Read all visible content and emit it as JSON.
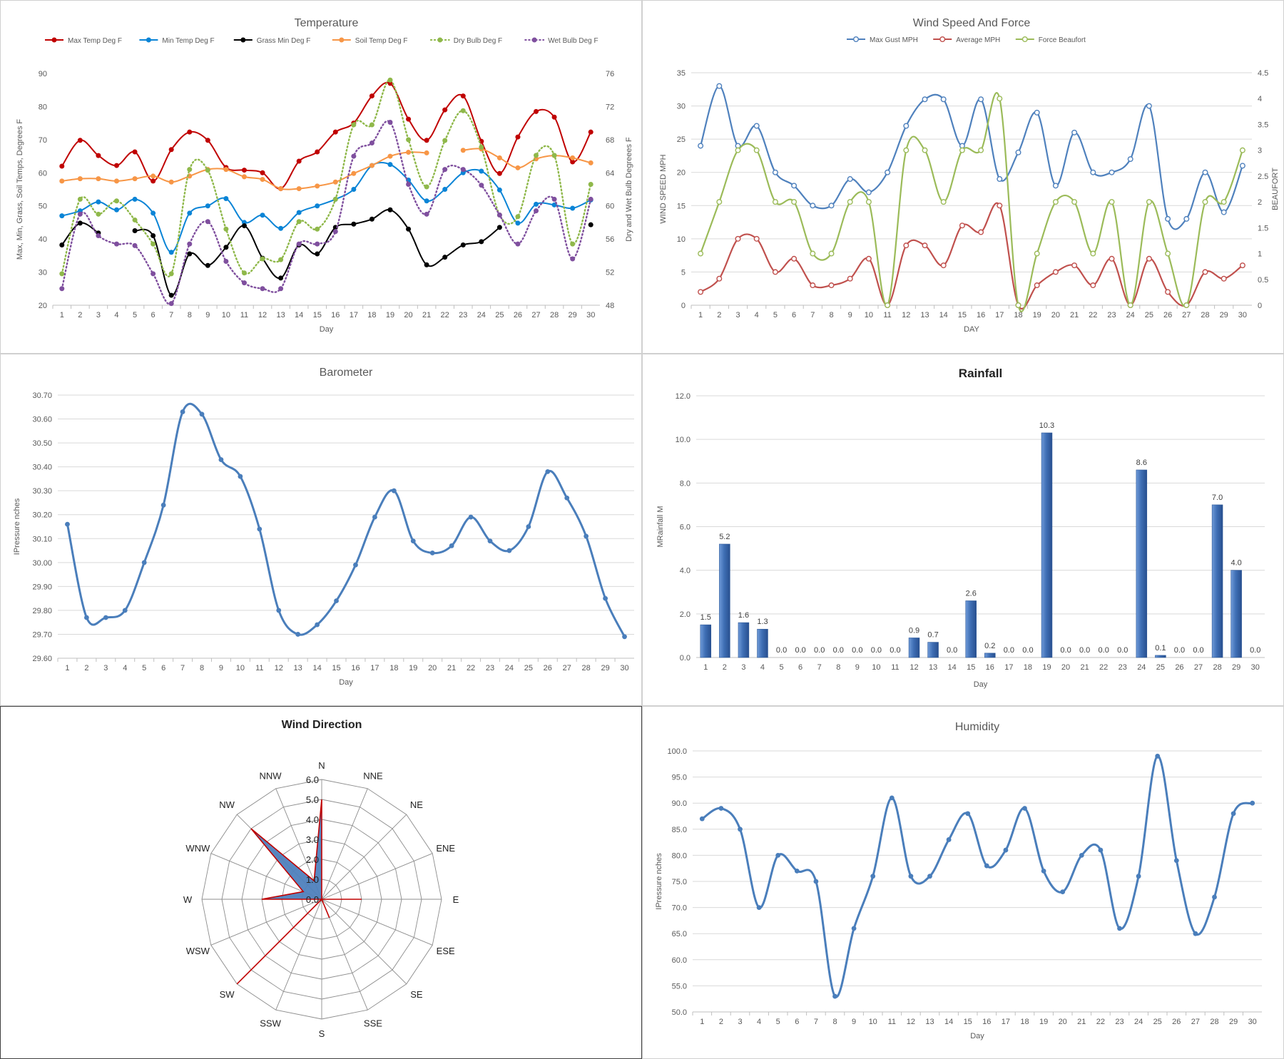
{
  "charts": {
    "temperature": {
      "chart_data": {
        "type": "line",
        "title": "Temperature",
        "xlabel": "Day",
        "ylabel": "Max, Min, Grass, Soil Temps, Degrees F",
        "y2label": "Dry and Wet Bulb Degreees F",
        "x": [
          1,
          2,
          3,
          4,
          5,
          6,
          7,
          8,
          9,
          10,
          11,
          12,
          13,
          14,
          15,
          16,
          17,
          18,
          19,
          20,
          21,
          22,
          23,
          24,
          25,
          26,
          27,
          28,
          29,
          30
        ],
        "ylim": [
          20,
          90
        ],
        "yticks": [
          20,
          30,
          40,
          50,
          60,
          70,
          80,
          90
        ],
        "y2lim": [
          48,
          76
        ],
        "y2ticks": [
          48,
          52,
          56,
          60,
          64,
          68,
          72,
          76
        ],
        "legend_position": "top",
        "series": [
          {
            "name": "Max Temp Deg F",
            "axis": "left",
            "color": "#c00000",
            "dashed": false,
            "values": [
              62,
              69.8,
              65.2,
              62.2,
              66.3,
              57.5,
              67,
              72.3,
              69.8,
              61.6,
              60.8,
              60,
              55.2,
              63.5,
              66.3,
              72.3,
              75,
              83.2,
              87,
              76.2,
              69.8,
              79,
              83.2,
              69.5,
              59.8,
              70.8,
              78.5,
              76.8,
              63.3,
              72.3
            ]
          },
          {
            "name": "Min Temp Deg F",
            "axis": "left",
            "color": "#0a84d6",
            "dashed": false,
            "values": [
              47,
              48.5,
              51.2,
              48.8,
              52,
              47.8,
              36,
              47.8,
              50,
              52.2,
              45,
              47.2,
              43.2,
              48,
              50,
              52,
              55,
              62.2,
              62.5,
              57.8,
              51.5,
              55,
              60,
              60.5,
              54.8,
              44.8,
              50.5,
              50.3,
              49.3,
              51.8
            ]
          },
          {
            "name": "Grass Min Deg F",
            "axis": "left",
            "color": "#000000",
            "dashed": false,
            "values": [
              38.2,
              44.8,
              41.8,
              null,
              42.5,
              41,
              23,
              35.5,
              32,
              37.5,
              44,
              34.2,
              28.2,
              38.2,
              35.5,
              43.5,
              44.5,
              46,
              48.8,
              43,
              32.2,
              34.5,
              38.2,
              39.2,
              43.5,
              null,
              null,
              null,
              null,
              44.3
            ]
          },
          {
            "name": "Soil Temp Deg F",
            "axis": "left",
            "color": "#f79646",
            "dashed": false,
            "values": [
              57.5,
              58.2,
              58.2,
              57.5,
              58.2,
              59,
              57.2,
              59,
              61,
              61,
              58.8,
              58,
              55.2,
              55.2,
              56,
              57.2,
              59.8,
              62.2,
              65,
              66.2,
              66,
              null,
              66.8,
              67.2,
              64.5,
              61.5,
              64.2,
              65.2,
              64.5,
              63
            ]
          },
          {
            "name": "Dry Bulb Deg F",
            "axis": "right",
            "color": "#8fb84a",
            "dashed": true,
            "values": [
              51.8,
              60.8,
              59,
              60.6,
              58.3,
              55.4,
              51.8,
              64.4,
              64.3,
              57.2,
              51.9,
              53.6,
              53.5,
              58.1,
              57.2,
              60.8,
              69.8,
              69.8,
              75.2,
              68,
              62.3,
              67.9,
              71.5,
              67.1,
              58.9,
              58.7,
              66.1,
              66.1,
              55.4,
              62.6
            ]
          },
          {
            "name": "Wet Bulb Deg F",
            "axis": "right",
            "color": "#7f4f9e",
            "dashed": true,
            "values": [
              50,
              59,
              56.4,
              55.4,
              55.2,
              51.8,
              48.2,
              55.4,
              58.1,
              53.3,
              50.7,
              50,
              50,
              55.4,
              55.4,
              56.9,
              66,
              67.6,
              70.1,
              62.6,
              59,
              64.4,
              64.4,
              62.5,
              58.9,
              55.4,
              59.4,
              60.8,
              53.6,
              60.8
            ]
          }
        ]
      }
    },
    "wind_speed": {
      "chart_data": {
        "type": "line",
        "title": "Wind Speed And Force",
        "xlabel": "DAY",
        "ylabel": "WIND SPEED MPH",
        "y2label": "BEAUFORT",
        "x": [
          1,
          2,
          3,
          4,
          5,
          6,
          7,
          8,
          9,
          10,
          11,
          12,
          13,
          14,
          15,
          16,
          17,
          18,
          19,
          20,
          21,
          22,
          23,
          24,
          25,
          26,
          27,
          28,
          29,
          30
        ],
        "ylim": [
          0,
          35
        ],
        "yticks": [
          0,
          5,
          10,
          15,
          20,
          25,
          30,
          35
        ],
        "y2lim": [
          0,
          4.5
        ],
        "y2ticks": [
          "0",
          "0.5",
          "1",
          "1.5",
          "2",
          "2.5",
          "3",
          "3.5",
          "4",
          "4.5"
        ],
        "legend_position": "top",
        "series": [
          {
            "name": "Max Gust MPH",
            "axis": "left",
            "color": "#4f81bd",
            "values": [
              24,
              33,
              24,
              27,
              20,
              18,
              15,
              15,
              19,
              17,
              20,
              27,
              31,
              31,
              24,
              31,
              19,
              23,
              29,
              18,
              26,
              20,
              20,
              22,
              30,
              13,
              13,
              20,
              14,
              21
            ]
          },
          {
            "name": "Average MPH",
            "axis": "left",
            "color": "#c0504d",
            "values": [
              2,
              4,
              10,
              10,
              5,
              7,
              3,
              3,
              4,
              7,
              0,
              9,
              9,
              6,
              12,
              11,
              15,
              0,
              3,
              5,
              6,
              3,
              7,
              0,
              7,
              2,
              0,
              5,
              4,
              6
            ]
          },
          {
            "name": "Force Beaufort",
            "axis": "right",
            "color": "#9bbb59",
            "values": [
              1,
              2,
              3,
              3,
              2,
              2,
              1,
              1,
              2,
              2,
              0,
              3,
              3,
              2,
              3,
              3,
              4,
              0,
              1,
              2,
              2,
              1,
              2,
              0,
              2,
              1,
              0,
              2,
              2,
              3
            ]
          }
        ]
      }
    },
    "barometer": {
      "chart_data": {
        "type": "line",
        "title": "Barometer",
        "xlabel": "Day",
        "ylabel": "IPressure nches",
        "x": [
          1,
          2,
          3,
          4,
          5,
          6,
          7,
          8,
          9,
          10,
          11,
          12,
          13,
          14,
          15,
          16,
          17,
          18,
          19,
          20,
          21,
          22,
          23,
          24,
          25,
          26,
          27,
          28,
          29,
          30
        ],
        "ylim": [
          29.6,
          30.7
        ],
        "yticks": [
          "29.60",
          "29.70",
          "29.80",
          "29.90",
          "30.00",
          "30.10",
          "30.20",
          "30.30",
          "30.40",
          "30.50",
          "30.60",
          "30.70"
        ],
        "series": [
          {
            "name": "",
            "color": "#4a7ebb",
            "values": [
              30.16,
              29.77,
              29.77,
              29.8,
              30.0,
              30.24,
              30.63,
              30.62,
              30.43,
              30.36,
              30.14,
              29.8,
              29.7,
              29.74,
              29.84,
              29.99,
              30.19,
              30.3,
              30.09,
              30.04,
              30.07,
              30.19,
              30.09,
              30.05,
              30.15,
              30.38,
              30.27,
              30.11,
              29.85,
              29.69
            ]
          }
        ]
      }
    },
    "rainfall": {
      "chart_data": {
        "type": "bar",
        "title": "Rainfall",
        "xlabel": "Day",
        "ylabel": "MRainfall M",
        "categories": [
          "1",
          "2",
          "3",
          "4",
          "5",
          "6",
          "7",
          "8",
          "9",
          "10",
          "11",
          "12",
          "13",
          "14",
          "15",
          "16",
          "17",
          "18",
          "19",
          "20",
          "21",
          "22",
          "23",
          "24",
          "25",
          "26",
          "27",
          "28",
          "29",
          "30"
        ],
        "values": [
          1.5,
          5.2,
          1.6,
          1.3,
          0,
          0,
          0,
          0,
          0,
          0,
          0,
          0.9,
          0.7,
          0,
          2.6,
          0.2,
          0,
          0,
          10.3,
          0,
          0,
          0,
          0,
          8.6,
          0.1,
          0,
          0,
          7.0,
          4.0,
          0
        ],
        "data_labels": [
          "1.5",
          "5.2",
          "1.6",
          "1.3",
          "0.0",
          "0.0",
          "0.0",
          "0.0",
          "0.0",
          "0.0",
          "0.0",
          "0.9",
          "0.7",
          "0.0",
          "2.6",
          "0.2",
          "0.0",
          "0.0",
          "10.3",
          "0.0",
          "0.0",
          "0.0",
          "0.0",
          "8.6",
          "0.1",
          "0.0",
          "0.0",
          "7.0",
          "4.0",
          "0.0"
        ],
        "ylim": [
          0,
          12
        ],
        "yticks": [
          "0.0",
          "2.0",
          "4.0",
          "6.0",
          "8.0",
          "10.0",
          "12.0"
        ],
        "color": "#3f6fb5"
      }
    },
    "wind_direction": {
      "chart_data": {
        "type": "radar",
        "title": "Wind Direction",
        "directions": [
          "N",
          "NNE",
          "NE",
          "ENE",
          "E",
          "ESE",
          "SE",
          "SSE",
          "S",
          "SSW",
          "SW",
          "WSW",
          "W",
          "WNW",
          "NW",
          "NNW"
        ],
        "values": [
          5,
          0,
          0,
          0,
          2,
          0,
          0,
          1,
          0,
          0,
          6,
          0,
          3,
          1,
          5,
          1
        ],
        "rlim": [
          0,
          6
        ],
        "rticks": [
          "0.0",
          "1.0",
          "2.0",
          "3.0",
          "4.0",
          "5.0",
          "6.0"
        ],
        "fill_color": "#4f81bd",
        "line_color": "#c00000"
      }
    },
    "humidity": {
      "chart_data": {
        "type": "line",
        "title": "Humidity",
        "xlabel": "Day",
        "ylabel": "IPressure nches",
        "x": [
          1,
          2,
          3,
          4,
          5,
          6,
          7,
          8,
          9,
          10,
          11,
          12,
          13,
          14,
          15,
          16,
          17,
          18,
          19,
          20,
          21,
          22,
          23,
          24,
          25,
          26,
          27,
          28,
          29,
          30
        ],
        "ylim": [
          50,
          100
        ],
        "yticks": [
          "50.0",
          "55.0",
          "60.0",
          "65.0",
          "70.0",
          "75.0",
          "80.0",
          "85.0",
          "90.0",
          "95.0",
          "100.0"
        ],
        "series": [
          {
            "name": "",
            "color": "#4a7ebb",
            "values": [
              87,
              89,
              85,
              70,
              80,
              77,
              75,
              53,
              66,
              76,
              91,
              76,
              76,
              83,
              88,
              78,
              81,
              89,
              77,
              73,
              80,
              81,
              66,
              76,
              99,
              79,
              65,
              72,
              88,
              90
            ]
          }
        ]
      }
    }
  }
}
